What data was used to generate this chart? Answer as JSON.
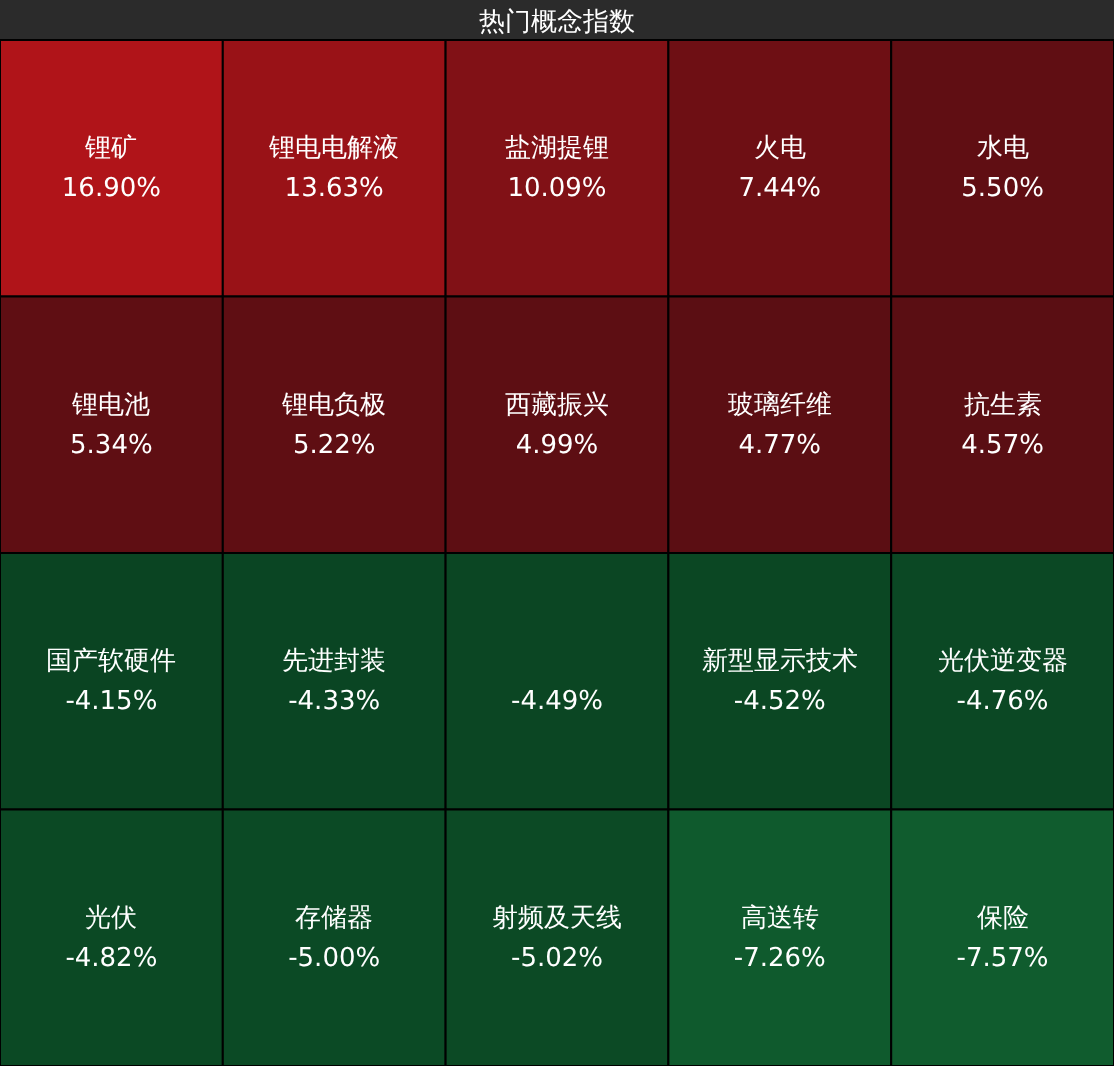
{
  "chart_data": {
    "type": "other",
    "title": "热门概念指数",
    "categories": [
      "锂矿",
      "锂电电解液",
      "盐湖提锂",
      "火电",
      "水电",
      "锂电池",
      "锂电负极",
      "西藏振兴",
      "玻璃纤维",
      "抗生素",
      "国产软硬件",
      "先进封装",
      null,
      "新型显示技术",
      "光伏逆变器",
      "光伏",
      "存储器",
      "射频及天线",
      "高送转",
      "保险"
    ],
    "values": [
      16.9,
      13.63,
      10.09,
      7.44,
      5.5,
      5.34,
      5.22,
      4.99,
      4.77,
      4.57,
      -4.15,
      -4.33,
      -4.49,
      -4.52,
      -4.76,
      -4.82,
      -5.0,
      -5.02,
      -7.26,
      -7.57
    ],
    "value_labels": [
      "16.90%",
      "13.63%",
      "10.09%",
      "7.44%",
      "5.50%",
      "5.34%",
      "5.22%",
      "4.99%",
      "4.77%",
      "4.57%",
      "-4.15%",
      "-4.33%",
      "-4.49%",
      "-4.52%",
      "-4.76%",
      "-4.82%",
      "-5.00%",
      "-5.02%",
      "-7.26%",
      "-7.57%"
    ]
  }
}
